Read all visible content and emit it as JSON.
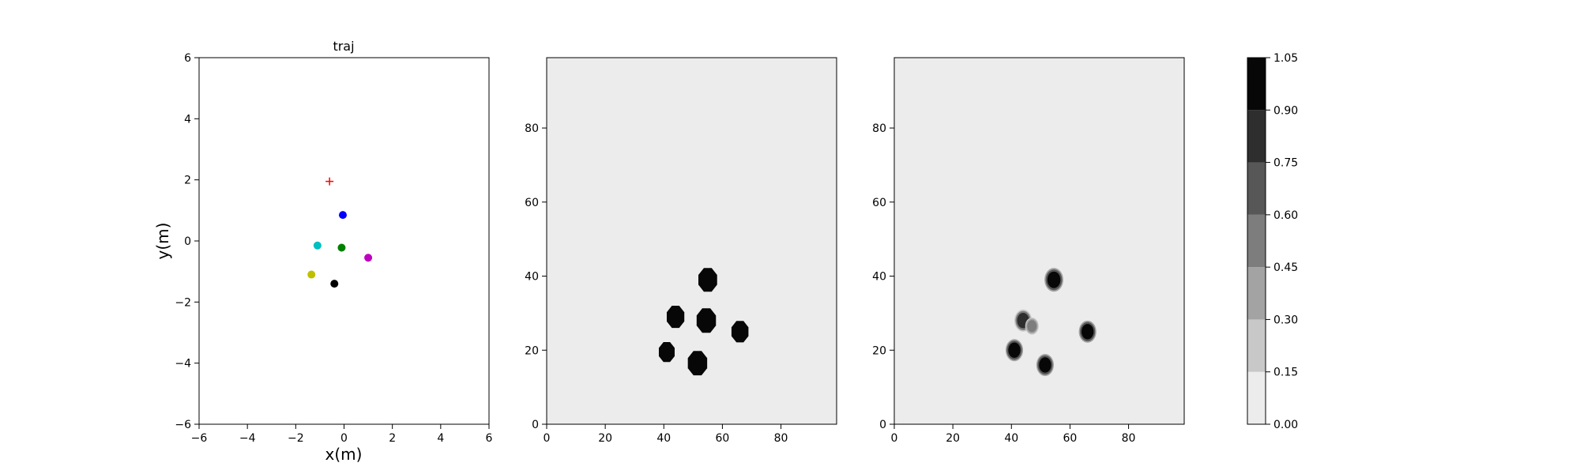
{
  "chart_data": [
    {
      "type": "scatter",
      "title": "traj",
      "xlabel": "x(m)",
      "ylabel": "y(m)",
      "xlim": [
        -6,
        6
      ],
      "ylim": [
        -6,
        6
      ],
      "xticks": [
        -6,
        -4,
        -2,
        0,
        2,
        4,
        6
      ],
      "yticks": [
        -6,
        -4,
        -2,
        0,
        2,
        4,
        6
      ],
      "xtick_labels": [
        "−6",
        "−4",
        "−2",
        "0",
        "2",
        "4",
        "6"
      ],
      "ytick_labels": [
        "−6",
        "−4",
        "−2",
        "0",
        "2",
        "4",
        "6"
      ],
      "grid": false,
      "target": {
        "x": -0.6,
        "y": 1.95,
        "color": "#ff0000",
        "marker": "plus"
      },
      "points": [
        {
          "x": -0.05,
          "y": 0.85,
          "color": "#0000ff"
        },
        {
          "x": -1.1,
          "y": -0.15,
          "color": "#00bfbf"
        },
        {
          "x": -0.1,
          "y": -0.22,
          "color": "#008000"
        },
        {
          "x": 1.0,
          "y": -0.55,
          "color": "#bf00bf"
        },
        {
          "x": -1.35,
          "y": -1.1,
          "color": "#bfbf00"
        },
        {
          "x": -0.4,
          "y": -1.4,
          "color": "#000000"
        }
      ]
    },
    {
      "type": "heatmap",
      "xlim": [
        0,
        99
      ],
      "ylim": [
        0,
        99
      ],
      "xticks": [
        0,
        20,
        40,
        60,
        80
      ],
      "yticks": [
        0,
        20,
        40,
        60,
        80
      ],
      "background_value": 0.05,
      "blobs": [
        {
          "x": 55,
          "y": 39,
          "r": 3.2,
          "value": 1.0,
          "shape": "octagon"
        },
        {
          "x": 44,
          "y": 29,
          "r": 3.0,
          "value": 1.0,
          "shape": "octagon"
        },
        {
          "x": 54.5,
          "y": 28,
          "r": 3.3,
          "value": 1.0,
          "shape": "octagon"
        },
        {
          "x": 66,
          "y": 25,
          "r": 2.9,
          "value": 1.0,
          "shape": "octagon"
        },
        {
          "x": 41,
          "y": 19.5,
          "r": 2.7,
          "value": 1.0,
          "shape": "octagon"
        },
        {
          "x": 51.5,
          "y": 16.5,
          "r": 3.3,
          "value": 1.0,
          "shape": "octagon"
        }
      ]
    },
    {
      "type": "heatmap",
      "xlim": [
        0,
        99
      ],
      "ylim": [
        0,
        99
      ],
      "xticks": [
        0,
        20,
        40,
        60,
        80
      ],
      "yticks": [
        0,
        20,
        40,
        60,
        80
      ],
      "background_value": 0.05,
      "blobs": [
        {
          "x": 54.5,
          "y": 39,
          "r": 2.8,
          "value": 1.0,
          "shape": "round"
        },
        {
          "x": 44,
          "y": 28,
          "r": 2.6,
          "value": 0.85,
          "shape": "round"
        },
        {
          "x": 47,
          "y": 26.5,
          "r": 2.0,
          "value": 0.45,
          "shape": "round"
        },
        {
          "x": 66,
          "y": 25,
          "r": 2.6,
          "value": 0.9,
          "shape": "round"
        },
        {
          "x": 41,
          "y": 20,
          "r": 2.6,
          "value": 1.0,
          "shape": "round"
        },
        {
          "x": 51.5,
          "y": 16,
          "r": 2.6,
          "value": 1.0,
          "shape": "round"
        }
      ]
    }
  ],
  "colorbar": {
    "levels": [
      0.0,
      0.15,
      0.3,
      0.45,
      0.6,
      0.75,
      0.9,
      1.05
    ],
    "labels": [
      "0.00",
      "0.15",
      "0.30",
      "0.45",
      "0.60",
      "0.75",
      "0.90",
      "1.05"
    ],
    "colors": [
      "#ececec",
      "#c8c8c8",
      "#a3a3a3",
      "#7d7d7d",
      "#575757",
      "#2e2e2e",
      "#070707"
    ]
  }
}
